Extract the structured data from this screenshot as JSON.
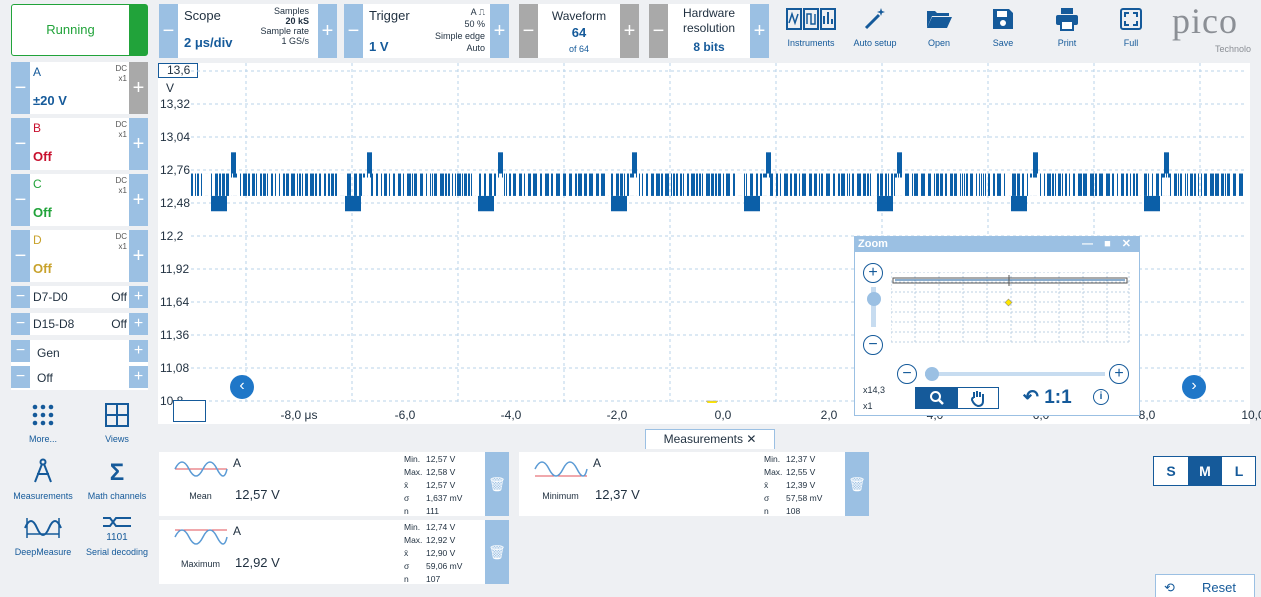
{
  "toolbar": {
    "run_label": "Running",
    "scope": {
      "title": "Scope",
      "value": "2 μs/div",
      "samples_label": "Samples",
      "samples": "20 kS",
      "rate_label": "Sample rate",
      "rate": "1 GS/s"
    },
    "trigger": {
      "title": "Trigger",
      "channel": "A",
      "value": "1 V",
      "pct": "50 %",
      "type": "Simple edge",
      "mode": "Auto"
    },
    "waveform": {
      "title": "Waveform",
      "value": "64",
      "of": "of 64"
    },
    "resolution": {
      "title1": "Hardware",
      "title2": "resolution",
      "value": "8 bits"
    },
    "tools": [
      "Instruments",
      "Auto setup",
      "Open",
      "Save",
      "Print",
      "Full"
    ],
    "logo": "pico",
    "logo_sub": "Technolo"
  },
  "channels": [
    {
      "name": "A",
      "coupling": "DC",
      "probe": "x1",
      "value": "±20 V",
      "color": "#155a9a"
    },
    {
      "name": "B",
      "coupling": "DC",
      "probe": "x1",
      "value": "Off",
      "color": "#c8102e"
    },
    {
      "name": "C",
      "coupling": "DC",
      "probe": "x1",
      "value": "Off",
      "color": "#21a33a"
    },
    {
      "name": "D",
      "coupling": "DC",
      "probe": "x1",
      "value": "Off",
      "color": "#c8a22c"
    }
  ],
  "digital": [
    {
      "name": "D7-D0",
      "state": "Off"
    },
    {
      "name": "D15-D8",
      "state": "Off"
    }
  ],
  "gen": {
    "name": "Gen",
    "state": "Off"
  },
  "left_tools": [
    "More...",
    "Views",
    "Measurements",
    "Math channels",
    "DeepMeasure",
    "Serial decoding"
  ],
  "graph": {
    "y_labels": [
      "13,6",
      "13,32",
      "13,04",
      "12,76",
      "12,48",
      "12,2",
      "11,92",
      "11,64",
      "11,36",
      "11,08",
      "10,8"
    ],
    "y_unit": "V",
    "x_labels": [
      "-8,0 μs",
      "-6,0",
      "-4,0",
      "-2,0",
      "0,0",
      "2,0",
      "4,0",
      "6,0",
      "8,0",
      "10,0"
    ]
  },
  "zoom": {
    "title": "Zoom",
    "factor": "x14,3",
    "factor2": "x1",
    "ratio": "1:1"
  },
  "measurements": {
    "tab": "Measurements",
    "cards": [
      {
        "channel": "A",
        "name": "Mean",
        "value": "12,57 V",
        "stats": [
          [
            "Min.",
            "12,57 V"
          ],
          [
            "Max.",
            "12,58 V"
          ],
          [
            "x̄",
            "12,57 V"
          ],
          [
            "σ",
            "1,637 mV"
          ],
          [
            "n",
            "111"
          ]
        ]
      },
      {
        "channel": "A",
        "name": "Minimum",
        "value": "12,37 V",
        "stats": [
          [
            "Min.",
            "12,37 V"
          ],
          [
            "Max.",
            "12,55 V"
          ],
          [
            "x̄",
            "12,39 V"
          ],
          [
            "σ",
            "57,58 mV"
          ],
          [
            "n",
            "108"
          ]
        ]
      },
      {
        "channel": "A",
        "name": "Maximum",
        "value": "12,92 V",
        "stats": [
          [
            "Min.",
            "12,74 V"
          ],
          [
            "Max.",
            "12,92 V"
          ],
          [
            "x̄",
            "12,90 V"
          ],
          [
            "σ",
            "59,06 mV"
          ],
          [
            "n",
            "107"
          ]
        ]
      }
    ]
  },
  "size_buttons": [
    "S",
    "M",
    "L"
  ],
  "reset_label": "Reset"
}
